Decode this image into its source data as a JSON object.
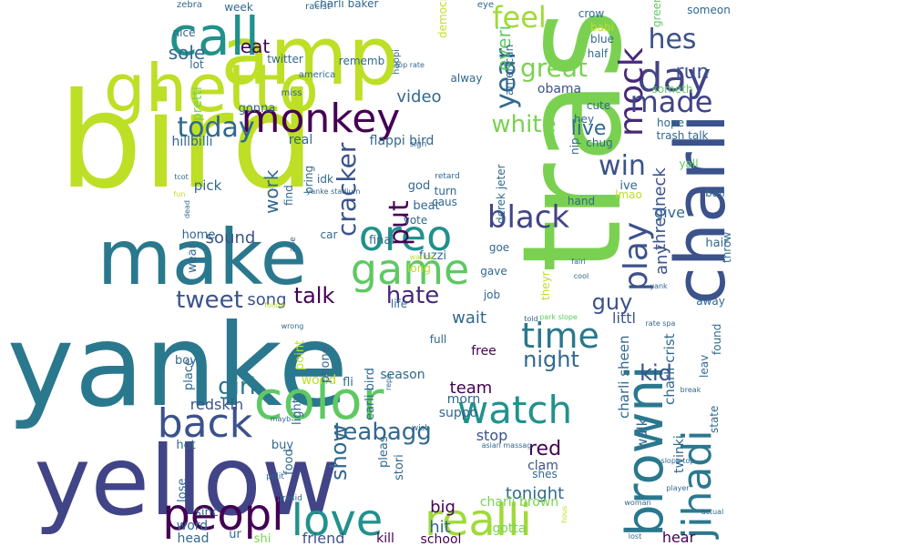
{
  "wordcloud": {
    "words": [
      {
        "text": "trash",
        "color": "#7ad151"
      },
      {
        "text": "bird",
        "color": "#bddf26"
      },
      {
        "text": "yanke",
        "color": "#2a788e"
      },
      {
        "text": "yellow",
        "color": "#414487"
      },
      {
        "text": "make",
        "color": "#2a788e"
      },
      {
        "text": "amp",
        "color": "#bddf26"
      },
      {
        "text": "charli",
        "color": "#3b528b"
      },
      {
        "text": "ghetto",
        "color": "#bddf26"
      },
      {
        "text": "color",
        "color": "#5ec962"
      },
      {
        "text": "browni",
        "color": "#2a788e"
      },
      {
        "text": "jihadi",
        "color": "#2a788e"
      },
      {
        "text": "call",
        "color": "#21918c"
      },
      {
        "text": "monkey",
        "color": "#440154"
      },
      {
        "text": "realli",
        "color": "#a0da39"
      },
      {
        "text": "peopl",
        "color": "#440154"
      },
      {
        "text": "watch",
        "color": "#21918c"
      },
      {
        "text": "back",
        "color": "#3b528b"
      },
      {
        "text": "love",
        "color": "#21918c"
      },
      {
        "text": "oreo",
        "color": "#21918c"
      },
      {
        "text": "game",
        "color": "#5ec962"
      },
      {
        "text": "day",
        "color": "#414487"
      },
      {
        "text": "play",
        "color": "#3b528b"
      },
      {
        "text": "mock",
        "color": "#482878"
      },
      {
        "text": "time",
        "color": "#2a788e"
      },
      {
        "text": "black",
        "color": "#414487"
      },
      {
        "text": "year",
        "color": "#31688e"
      },
      {
        "text": "feel",
        "color": "#a0da39"
      },
      {
        "text": "made",
        "color": "#414487"
      },
      {
        "text": "today",
        "color": "#31688e"
      },
      {
        "text": "hes",
        "color": "#3b528b"
      },
      {
        "text": "cracker",
        "color": "#3b528b"
      },
      {
        "text": "great",
        "color": "#7ad151"
      },
      {
        "text": "win",
        "color": "#3b528b"
      },
      {
        "text": "put",
        "color": "#440154"
      },
      {
        "text": "white",
        "color": "#7ad151"
      },
      {
        "text": "tweet",
        "color": "#3b528b"
      },
      {
        "text": "teabagg",
        "color": "#31688e"
      },
      {
        "text": "hate",
        "color": "#482878"
      },
      {
        "text": "girl",
        "color": "#2a788e"
      },
      {
        "text": "talk",
        "color": "#440154"
      },
      {
        "text": "night",
        "color": "#31688e"
      },
      {
        "text": "show",
        "color": "#31688e"
      },
      {
        "text": "kid",
        "color": "#3b528b"
      },
      {
        "text": "guy",
        "color": "#3b528b"
      },
      {
        "text": "red",
        "color": "#440154"
      },
      {
        "text": "run",
        "color": "#3b528b"
      },
      {
        "text": "live",
        "color": "#31688e"
      },
      {
        "text": "eat",
        "color": "#440154"
      },
      {
        "text": "sole",
        "color": "#31688e"
      },
      {
        "text": "work",
        "color": "#31688e"
      },
      {
        "text": "everi",
        "color": "#5ec962"
      },
      {
        "text": "song",
        "color": "#3b528b"
      },
      {
        "text": "sound",
        "color": "#3b528b"
      },
      {
        "text": "team",
        "color": "#440154"
      },
      {
        "text": "tonight",
        "color": "#31688e"
      },
      {
        "text": "wait",
        "color": "#31688e"
      },
      {
        "text": "hit",
        "color": "#31688e"
      },
      {
        "text": "big",
        "color": "#440154"
      },
      {
        "text": "video",
        "color": "#31688e"
      },
      {
        "text": "stop",
        "color": "#3b528b"
      },
      {
        "text": "thredneck",
        "color": "#3b528b"
      },
      {
        "text": "any",
        "color": "#3b528b"
      },
      {
        "text": "give",
        "color": "#31688e"
      },
      {
        "text": "littl",
        "color": "#3b528b"
      },
      {
        "text": "clam",
        "color": "#3b528b"
      },
      {
        "text": "friend",
        "color": "#3b528b"
      },
      {
        "text": "hear",
        "color": "#440154"
      },
      {
        "text": "redskin",
        "color": "#3b528b"
      },
      {
        "text": "obama",
        "color": "#3b528b"
      },
      {
        "text": "charli sheen",
        "color": "#31688e"
      },
      {
        "text": "charli crist",
        "color": "#31688e"
      },
      {
        "text": "walk",
        "color": "#31688e"
      },
      {
        "text": "twinki",
        "color": "#31688e"
      },
      {
        "text": "charli brown",
        "color": "#7ad151"
      },
      {
        "text": "gotta",
        "color": "#7ad151"
      },
      {
        "text": "kill",
        "color": "#440154"
      },
      {
        "text": "school",
        "color": "#440154"
      },
      {
        "text": "free",
        "color": "#440154"
      },
      {
        "text": "world",
        "color": "#bddf26"
      },
      {
        "text": "season",
        "color": "#31688e"
      },
      {
        "text": "morn",
        "color": "#31688e"
      },
      {
        "text": "suppo",
        "color": "#31688e"
      },
      {
        "text": "flappi bird",
        "color": "#31688e"
      },
      {
        "text": "pretti",
        "color": "#7ad151"
      },
      {
        "text": "gonna",
        "color": "#31688e"
      },
      {
        "text": "real",
        "color": "#31688e"
      },
      {
        "text": "hillbilli",
        "color": "#31688e"
      },
      {
        "text": "pick",
        "color": "#31688e"
      },
      {
        "text": "home",
        "color": "#31688e"
      },
      {
        "text": "wear",
        "color": "#31688e"
      },
      {
        "text": "boy",
        "color": "#31688e"
      },
      {
        "text": "place",
        "color": "#31688e"
      },
      {
        "text": "hot",
        "color": "#31688e"
      },
      {
        "text": "lose",
        "color": "#31688e"
      },
      {
        "text": "word",
        "color": "#31688e"
      },
      {
        "text": "head",
        "color": "#31688e"
      },
      {
        "text": "shi",
        "color": "#7ad151"
      },
      {
        "text": "ur",
        "color": "#31688e"
      },
      {
        "text": "sinc",
        "color": "#31688e"
      },
      {
        "text": "buy",
        "color": "#31688e"
      },
      {
        "text": "food",
        "color": "#31688e"
      },
      {
        "text": "light",
        "color": "#31688e"
      },
      {
        "text": "phone",
        "color": "#31688e"
      },
      {
        "text": "earli bird",
        "color": "#31688e"
      },
      {
        "text": "point",
        "color": "#bddf26"
      },
      {
        "text": "fli",
        "color": "#31688e"
      },
      {
        "text": "pleas",
        "color": "#31688e"
      },
      {
        "text": "stori",
        "color": "#31688e"
      },
      {
        "text": "shes",
        "color": "#31688e"
      },
      {
        "text": "derek jeter",
        "color": "#31688e"
      },
      {
        "text": "god",
        "color": "#31688e"
      },
      {
        "text": "beat",
        "color": "#31688e"
      },
      {
        "text": "turn",
        "color": "#31688e"
      },
      {
        "text": "caus",
        "color": "#31688e"
      },
      {
        "text": "vote",
        "color": "#31688e"
      },
      {
        "text": "fuzzi",
        "color": "#31688e"
      },
      {
        "text": "final",
        "color": "#31688e"
      },
      {
        "text": "long",
        "color": "#bddf26"
      },
      {
        "text": "life",
        "color": "#31688e"
      },
      {
        "text": "job",
        "color": "#31688e"
      },
      {
        "text": "full",
        "color": "#31688e"
      },
      {
        "text": "car",
        "color": "#31688e"
      },
      {
        "text": "bring",
        "color": "#31688e"
      },
      {
        "text": "find",
        "color": "#31688e"
      },
      {
        "text": "idk",
        "color": "#31688e"
      },
      {
        "text": "alway",
        "color": "#31688e"
      },
      {
        "text": "american",
        "color": "#31688e"
      },
      {
        "text": "half",
        "color": "#31688e"
      },
      {
        "text": "cute",
        "color": "#31688e"
      },
      {
        "text": "hey",
        "color": "#31688e"
      },
      {
        "text": "hope",
        "color": "#31688e"
      },
      {
        "text": "chug",
        "color": "#31688e"
      },
      {
        "text": "trash talk",
        "color": "#31688e"
      },
      {
        "text": "yall",
        "color": "#5ec962"
      },
      {
        "text": "nip",
        "color": "#31688e"
      },
      {
        "text": "ive",
        "color": "#31688e"
      },
      {
        "text": "lmao",
        "color": "#bddf26"
      },
      {
        "text": "ball",
        "color": "#31688e"
      },
      {
        "text": "hand",
        "color": "#31688e"
      },
      {
        "text": "hair",
        "color": "#31688e"
      },
      {
        "text": "throw",
        "color": "#31688e"
      },
      {
        "text": "away",
        "color": "#31688e"
      },
      {
        "text": "found",
        "color": "#31688e"
      },
      {
        "text": "leav",
        "color": "#31688e"
      },
      {
        "text": "state",
        "color": "#31688e"
      },
      {
        "text": "goe",
        "color": "#31688e"
      },
      {
        "text": "gave",
        "color": "#31688e"
      },
      {
        "text": "theyr",
        "color": "#bddf26"
      },
      {
        "text": "someon",
        "color": "#31688e"
      },
      {
        "text": "someth",
        "color": "#5ec962"
      },
      {
        "text": "green",
        "color": "#5ec962"
      },
      {
        "text": "blue",
        "color": "#31688e"
      },
      {
        "text": "crow",
        "color": "#31688e"
      },
      {
        "text": "babi",
        "color": "#bddf26"
      },
      {
        "text": "democrat",
        "color": "#bddf26"
      },
      {
        "text": "charli baker",
        "color": "#31688e"
      },
      {
        "text": "week",
        "color": "#31688e"
      },
      {
        "text": "lot",
        "color": "#31688e"
      },
      {
        "text": "nice",
        "color": "#31688e"
      },
      {
        "text": "twitter",
        "color": "#31688e"
      },
      {
        "text": "rememb",
        "color": "#31688e"
      },
      {
        "text": "racist",
        "color": "#31688e"
      },
      {
        "text": "eye",
        "color": "#31688e"
      },
      {
        "text": "zebra",
        "color": "#31688e"
      },
      {
        "text": "america",
        "color": "#31688e"
      },
      {
        "text": "miss",
        "color": "#31688e"
      },
      {
        "text": "happi",
        "color": "#31688e"
      },
      {
        "text": "sign",
        "color": "#31688e"
      },
      {
        "text": "retard",
        "color": "#31688e"
      },
      {
        "text": "tcot",
        "color": "#31688e"
      },
      {
        "text": "fun",
        "color": "#bddf26"
      },
      {
        "text": "dead",
        "color": "#31688e"
      },
      {
        "text": "yanke stadium",
        "color": "#31688e"
      },
      {
        "text": "ape",
        "color": "#31688e"
      },
      {
        "text": "wanna",
        "color": "#bddf26"
      },
      {
        "text": "fairi",
        "color": "#31688e"
      },
      {
        "text": "cool",
        "color": "#31688e"
      },
      {
        "text": "yank",
        "color": "#31688e"
      },
      {
        "text": "follow",
        "color": "#bddf26"
      },
      {
        "text": "wrong",
        "color": "#31688e"
      },
      {
        "text": "park slope",
        "color": "#5ec962"
      },
      {
        "text": "told",
        "color": "#31688e"
      },
      {
        "text": "rate spa",
        "color": "#31688e"
      },
      {
        "text": "break",
        "color": "#31688e"
      },
      {
        "text": "mayb",
        "color": "#31688e"
      },
      {
        "text": "repo",
        "color": "#31688e"
      },
      {
        "text": "wish",
        "color": "#31688e"
      },
      {
        "text": "asian massag",
        "color": "#31688e"
      },
      {
        "text": "polit",
        "color": "#31688e"
      },
      {
        "text": "presid",
        "color": "#31688e"
      },
      {
        "text": "slope top",
        "color": "#31688e"
      },
      {
        "text": "player",
        "color": "#31688e"
      },
      {
        "text": "actual",
        "color": "#31688e"
      },
      {
        "text": "woman",
        "color": "#31688e"
      },
      {
        "text": "hous",
        "color": "#bddf26"
      },
      {
        "text": "lost",
        "color": "#31688e"
      },
      {
        "text": "top rate",
        "color": "#31688e"
      },
      {
        "text": "w",
        "color": "#31688e"
      }
    ]
  }
}
